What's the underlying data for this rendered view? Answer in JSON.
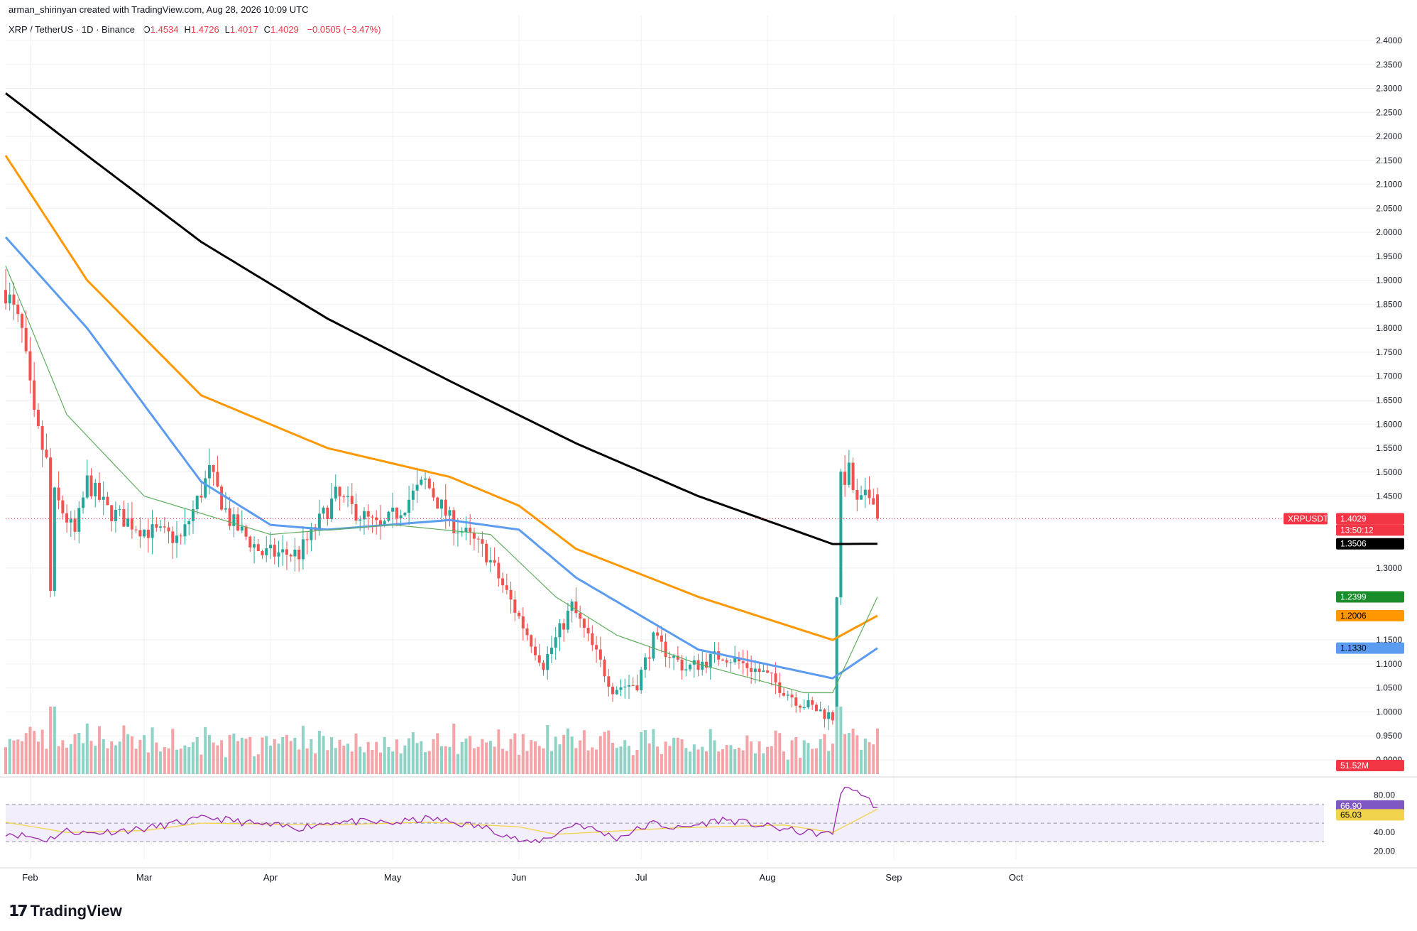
{
  "header": {
    "author_line": "arman_shirinyan created with TradingView.com, Aug 28, 2026 10:09 UTC",
    "symbol_line": "XRP / TetherUS · 1D · Binance",
    "ohlc": [
      {
        "k": "O",
        "v": "1.4534"
      },
      {
        "k": "H",
        "v": "1.4726"
      },
      {
        "k": "L",
        "v": "1.4017"
      },
      {
        "k": "C",
        "v": "1.4029"
      }
    ],
    "change": "−0.0505 (−3.47%)"
  },
  "brand": {
    "name": "TradingView",
    "logo_icon": "tradingview-logo-icon"
  },
  "colors": {
    "up": "#26a69a",
    "down": "#ef5350",
    "vol_up": "#8fd3c7",
    "vol_down": "#f4a4a6",
    "ma200": "#000000",
    "ma100": "#ff9800",
    "ma50": "#5b9cf0",
    "ma20": "#5fae5f",
    "rsi": "#9c27b0",
    "rsi_ma": "#f2d34c",
    "grid": "#eef0f3"
  },
  "chart_data": {
    "type": "candlestick",
    "ylim": [
      0.9,
      2.4
    ],
    "y_ticks": [
      "2.4000",
      "2.3500",
      "2.3000",
      "2.2500",
      "2.2000",
      "2.1500",
      "2.1000",
      "2.0500",
      "2.0000",
      "1.9500",
      "1.9000",
      "1.8500",
      "1.8000",
      "1.7500",
      "1.7000",
      "1.6500",
      "1.6000",
      "1.5500",
      "1.5000",
      "1.4500",
      "1.3000",
      "1.1500",
      "1.1000",
      "1.0500",
      "1.0000",
      "0.9500",
      "0.9000"
    ],
    "x_ticks": [
      {
        "label": "Feb",
        "date": "2026-02-01"
      },
      {
        "label": "Mar",
        "date": "2026-03-01"
      },
      {
        "label": "Apr",
        "date": "2026-04-01"
      },
      {
        "label": "May",
        "date": "2026-05-01"
      },
      {
        "label": "Jun",
        "date": "2026-06-01"
      },
      {
        "label": "Jul",
        "date": "2026-07-01"
      },
      {
        "label": "Aug",
        "date": "2026-08-01"
      },
      {
        "label": "Sep",
        "date": "2026-09-01"
      },
      {
        "label": "Oct",
        "date": "2026-10-01"
      }
    ],
    "x_range": [
      "2026-01-26",
      "2026-10-13"
    ],
    "ohlc_anchors": [
      {
        "date": "2026-01-26",
        "close": 1.88
      },
      {
        "date": "2026-01-30",
        "close": 1.79
      },
      {
        "date": "2026-02-02",
        "close": 1.61
      },
      {
        "date": "2026-02-05",
        "close": 1.52
      },
      {
        "date": "2026-02-06",
        "close": 1.25
      },
      {
        "date": "2026-02-07",
        "close": 1.45
      },
      {
        "date": "2026-02-12",
        "close": 1.37
      },
      {
        "date": "2026-02-15",
        "close": 1.48
      },
      {
        "date": "2026-02-20",
        "close": 1.42
      },
      {
        "date": "2026-03-01",
        "close": 1.38
      },
      {
        "date": "2026-03-10",
        "close": 1.36
      },
      {
        "date": "2026-03-17",
        "close": 1.5
      },
      {
        "date": "2026-03-22",
        "close": 1.4
      },
      {
        "date": "2026-03-30",
        "close": 1.33
      },
      {
        "date": "2026-04-08",
        "close": 1.33
      },
      {
        "date": "2026-04-17",
        "close": 1.45
      },
      {
        "date": "2026-04-28",
        "close": 1.38
      },
      {
        "date": "2026-05-09",
        "close": 1.48
      },
      {
        "date": "2026-05-15",
        "close": 1.4
      },
      {
        "date": "2026-05-24",
        "close": 1.33
      },
      {
        "date": "2026-06-02",
        "close": 1.18
      },
      {
        "date": "2026-06-07",
        "close": 1.1
      },
      {
        "date": "2026-06-14",
        "close": 1.22
      },
      {
        "date": "2026-06-24",
        "close": 1.05
      },
      {
        "date": "2026-06-30",
        "close": 1.06
      },
      {
        "date": "2026-07-04",
        "close": 1.15
      },
      {
        "date": "2026-07-12",
        "close": 1.09
      },
      {
        "date": "2026-07-21",
        "close": 1.12
      },
      {
        "date": "2026-07-31",
        "close": 1.08
      },
      {
        "date": "2026-08-09",
        "close": 1.02
      },
      {
        "date": "2026-08-17",
        "close": 0.99
      },
      {
        "date": "2026-08-18",
        "close": 1.25
      },
      {
        "date": "2026-08-19",
        "close": 1.48
      },
      {
        "date": "2026-08-21",
        "close": 1.5
      },
      {
        "date": "2026-08-23",
        "close": 1.43
      },
      {
        "date": "2026-08-26",
        "close": 1.45
      },
      {
        "date": "2026-08-27",
        "close": 1.4534
      },
      {
        "date": "2026-08-28",
        "close": 1.4029
      }
    ],
    "moving_averages": [
      {
        "name": "MA200",
        "color_key": "ma200",
        "points": [
          [
            "2026-01-26",
            2.29
          ],
          [
            "2026-02-15",
            2.16
          ],
          [
            "2026-03-15",
            1.98
          ],
          [
            "2026-04-15",
            1.82
          ],
          [
            "2026-05-15",
            1.69
          ],
          [
            "2026-06-15",
            1.56
          ],
          [
            "2026-07-15",
            1.45
          ],
          [
            "2026-08-17",
            1.35
          ],
          [
            "2026-08-28",
            1.3506
          ]
        ]
      },
      {
        "name": "MA100",
        "color_key": "ma100",
        "points": [
          [
            "2026-01-26",
            2.16
          ],
          [
            "2026-02-15",
            1.9
          ],
          [
            "2026-03-15",
            1.66
          ],
          [
            "2026-04-15",
            1.55
          ],
          [
            "2026-05-15",
            1.49
          ],
          [
            "2026-06-01",
            1.43
          ],
          [
            "2026-06-15",
            1.34
          ],
          [
            "2026-07-15",
            1.24
          ],
          [
            "2026-08-17",
            1.15
          ],
          [
            "2026-08-28",
            1.2006
          ]
        ]
      },
      {
        "name": "MA50",
        "color_key": "ma50",
        "points": [
          [
            "2026-01-26",
            1.99
          ],
          [
            "2026-02-15",
            1.8
          ],
          [
            "2026-03-15",
            1.48
          ],
          [
            "2026-04-01",
            1.39
          ],
          [
            "2026-04-15",
            1.38
          ],
          [
            "2026-05-15",
            1.4
          ],
          [
            "2026-06-01",
            1.38
          ],
          [
            "2026-06-15",
            1.28
          ],
          [
            "2026-07-15",
            1.13
          ],
          [
            "2026-08-17",
            1.07
          ],
          [
            "2026-08-28",
            1.133
          ]
        ]
      },
      {
        "name": "MA20",
        "color_key": "ma20",
        "points": [
          [
            "2026-01-26",
            1.93
          ],
          [
            "2026-02-10",
            1.62
          ],
          [
            "2026-03-01",
            1.45
          ],
          [
            "2026-04-01",
            1.37
          ],
          [
            "2026-05-01",
            1.39
          ],
          [
            "2026-05-25",
            1.37
          ],
          [
            "2026-06-10",
            1.24
          ],
          [
            "2026-06-25",
            1.16
          ],
          [
            "2026-07-15",
            1.1
          ],
          [
            "2026-08-10",
            1.04
          ],
          [
            "2026-08-17",
            1.04
          ],
          [
            "2026-08-28",
            1.2399
          ]
        ]
      }
    ],
    "price_labels": [
      {
        "text": "XRPUSDT",
        "value": 1.4029,
        "bg": "#f23645",
        "fg": "#ffffff"
      },
      {
        "text": "1.4029",
        "value": 1.4029,
        "bg": "#f23645",
        "fg": "#ffffff"
      },
      {
        "text": "13:50:12",
        "value": 1.4029,
        "bg": "#f23645",
        "fg": "#ffffff"
      },
      {
        "text": "1.3506",
        "value": 1.3506,
        "bg": "#000000",
        "fg": "#ffffff"
      },
      {
        "text": "1.2399",
        "value": 1.2399,
        "bg": "#1b8c2a",
        "fg": "#ffffff"
      },
      {
        "text": "1.2006",
        "value": 1.2006,
        "bg": "#ff9800",
        "fg": "#000000"
      },
      {
        "text": "1.1330",
        "value": 1.133,
        "bg": "#5b9cf0",
        "fg": "#000000"
      }
    ],
    "volume_label": {
      "text": "51.52M",
      "bg": "#f23645",
      "fg": "#ffffff"
    },
    "rsi": {
      "ylim": [
        15,
        95
      ],
      "ticks": [
        "80.00",
        "40.00",
        "20.00"
      ],
      "band": [
        30,
        70
      ],
      "anchors": [
        [
          "2026-01-26",
          40
        ],
        [
          "2026-02-05",
          32
        ],
        [
          "2026-02-10",
          42
        ],
        [
          "2026-02-15",
          39
        ],
        [
          "2026-03-01",
          44
        ],
        [
          "2026-03-17",
          56
        ],
        [
          "2026-03-30",
          48
        ],
        [
          "2026-04-08",
          45
        ],
        [
          "2026-04-17",
          52
        ],
        [
          "2026-05-01",
          50
        ],
        [
          "2026-05-10",
          55
        ],
        [
          "2026-05-25",
          44
        ],
        [
          "2026-06-03",
          28
        ],
        [
          "2026-06-08",
          34
        ],
        [
          "2026-06-15",
          50
        ],
        [
          "2026-06-25",
          34
        ],
        [
          "2026-07-04",
          50
        ],
        [
          "2026-07-10",
          44
        ],
        [
          "2026-07-21",
          54
        ],
        [
          "2026-07-31",
          47
        ],
        [
          "2026-08-10",
          40
        ],
        [
          "2026-08-17",
          38
        ],
        [
          "2026-08-19",
          84
        ],
        [
          "2026-08-22",
          88
        ],
        [
          "2026-08-28",
          66.9
        ]
      ],
      "ma_anchors": [
        [
          "2026-01-26",
          51
        ],
        [
          "2026-02-10",
          40
        ],
        [
          "2026-03-01",
          42
        ],
        [
          "2026-03-15",
          50
        ],
        [
          "2026-04-15",
          48
        ],
        [
          "2026-05-10",
          51
        ],
        [
          "2026-06-01",
          46
        ],
        [
          "2026-06-10",
          38
        ],
        [
          "2026-07-10",
          45
        ],
        [
          "2026-08-05",
          48
        ],
        [
          "2026-08-17",
          40
        ],
        [
          "2026-08-28",
          65.03
        ]
      ],
      "labels": [
        {
          "text": "66.90",
          "value": 66.9,
          "bg": "#7e57c2",
          "fg": "#ffffff"
        },
        {
          "text": "65.03",
          "value": 65.03,
          "bg": "#f2d34c",
          "fg": "#000000"
        }
      ]
    }
  }
}
